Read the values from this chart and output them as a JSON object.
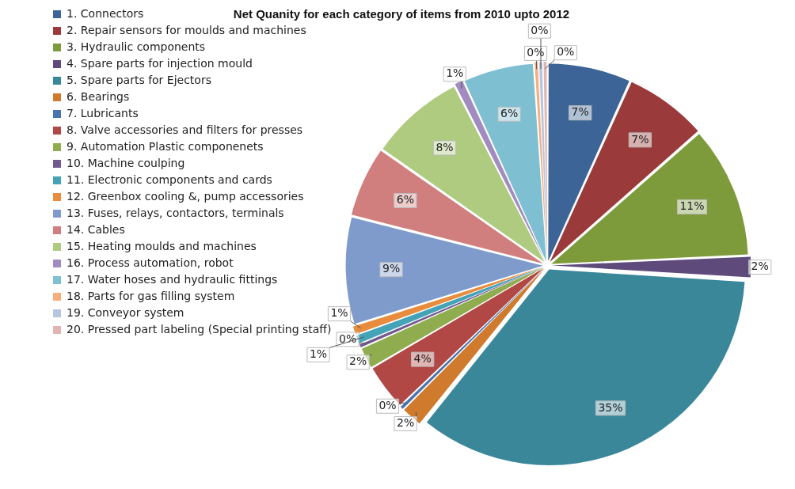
{
  "chart_data": {
    "type": "pie",
    "title": "Net Quanity for each category of items from 2010 upto 2012",
    "categories": [
      "1. Connectors",
      "2. Repair sensors for moulds and machines",
      "3. Hydraulic components",
      "4. Spare parts for injection mould",
      "5. Spare parts for Ejectors",
      "6. Bearings",
      "7. Lubricants",
      "8. Valve accessories and filters for presses",
      "9. Automation Plastic componenets",
      "10. Machine coulping",
      "11. Electronic components and cards",
      "12. Greenbox cooling &, pump accessories",
      "13. Fuses, relays, contactors, terminals",
      "14. Cables",
      "15. Heating moulds and machines",
      "16. Process automation, robot",
      "17. Water hoses and hydraulic fittings",
      "18. Parts for gas filling system",
      "19. Conveyor system",
      "20. Pressed part labeling (Special printing staff)"
    ],
    "values": [
      6.75,
      6.75,
      10.75,
      1.75,
      34.75,
      1.75,
      0.35,
      3.75,
      1.75,
      0.35,
      0.75,
      0.75,
      8.75,
      5.75,
      7.75,
      0.75,
      5.75,
      0.35,
      0.35,
      0.35
    ],
    "value_labels": [
      "7%",
      "7%",
      "11%",
      "2%",
      "35%",
      "2%",
      "0%",
      "4%",
      "2%",
      "0%",
      "1%",
      "1%",
      "9%",
      "6%",
      "8%",
      "1%",
      "6%",
      "0%",
      "0%",
      "0%"
    ],
    "colors": [
      "#3c6496",
      "#9b3a3a",
      "#7e9b3c",
      "#5f4a7c",
      "#3a8799",
      "#d07a2e",
      "#4a74ae",
      "#b24845",
      "#8fad4f",
      "#72598f",
      "#45a3b8",
      "#e88c3d",
      "#7f9bcc",
      "#d17f7e",
      "#aecb80",
      "#a28cbf",
      "#7fbfd2",
      "#f6ae7c",
      "#b6c5e0",
      "#e1b5b4"
    ],
    "legend": "left"
  }
}
